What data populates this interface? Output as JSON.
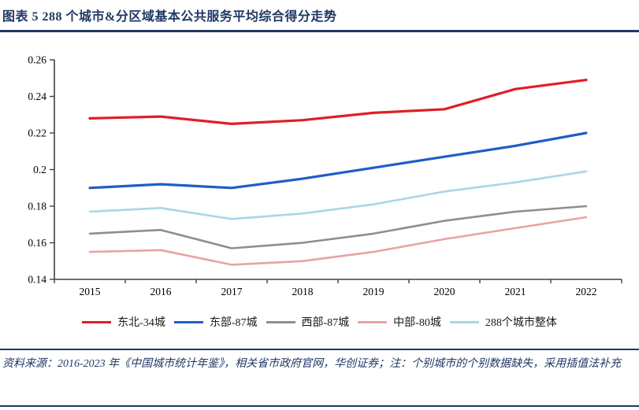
{
  "figure": {
    "title": "图表 5  288 个城市&分区域基本公共服务平均综合得分走势",
    "source_note": "资料来源：2016-2023 年《中国城市统计年鉴》，相关省市政府官网，华创证券；注：个别城市的个别数据缺失，采用插值法补充"
  },
  "colors": {
    "accent_navy": "#1f3864",
    "axis": "#404040",
    "tick_text": "#000000"
  },
  "chart_data": {
    "type": "line",
    "title": "288个城市&分区域基本公共服务平均综合得分走势",
    "x": [
      "2015",
      "2016",
      "2017",
      "2018",
      "2019",
      "2020",
      "2021",
      "2022"
    ],
    "y_ticks": [
      "0.14",
      "0.16",
      "0.18",
      "0.2",
      "0.22",
      "0.24",
      "0.26"
    ],
    "ylim": [
      0.14,
      0.26
    ],
    "xlabel": "",
    "ylabel": "",
    "grid": false,
    "legend_position": "bottom",
    "series": [
      {
        "name": "东北-34城",
        "color": "#e01e25",
        "values": [
          0.228,
          0.229,
          0.225,
          0.227,
          0.231,
          0.233,
          0.244,
          0.249
        ]
      },
      {
        "name": "东部-87城",
        "color": "#1e5ec6",
        "values": [
          0.19,
          0.192,
          0.19,
          0.195,
          0.201,
          0.207,
          0.213,
          0.22
        ]
      },
      {
        "name": "西部-87城",
        "color": "#8e8e8e",
        "values": [
          0.165,
          0.167,
          0.157,
          0.16,
          0.165,
          0.172,
          0.177,
          0.18
        ]
      },
      {
        "name": "中部-80城",
        "color": "#e7a3a4",
        "values": [
          0.155,
          0.156,
          0.148,
          0.15,
          0.155,
          0.162,
          0.168,
          0.174
        ]
      },
      {
        "name": "288个城市整体",
        "color": "#aad6e8",
        "values": [
          0.177,
          0.179,
          0.173,
          0.176,
          0.181,
          0.188,
          0.193,
          0.199
        ]
      }
    ]
  }
}
